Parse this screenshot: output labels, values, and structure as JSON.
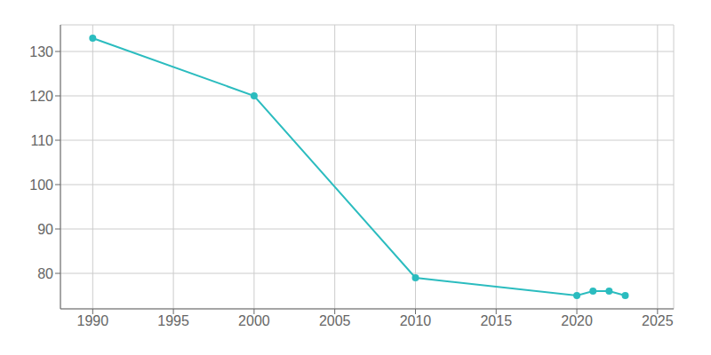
{
  "chart_data": {
    "type": "line",
    "x": [
      1990,
      2000,
      2010,
      2020,
      2021,
      2022,
      2023
    ],
    "values": [
      133,
      120,
      79,
      75,
      76,
      76,
      75
    ],
    "color": "#2bbcbf",
    "marker": "circle",
    "xlim": [
      1988,
      2026
    ],
    "ylim": [
      72,
      136
    ],
    "xticks": [
      1990,
      1995,
      2000,
      2005,
      2010,
      2015,
      2020,
      2025
    ],
    "yticks": [
      80,
      90,
      100,
      110,
      120,
      130
    ],
    "grid": true
  }
}
